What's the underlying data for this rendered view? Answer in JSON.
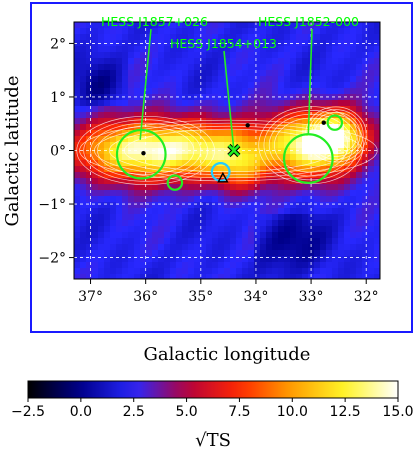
{
  "chart_data": {
    "type": "heatmap",
    "colormap": "gist_heat-like (black → blue → red → orange → yellow → white)",
    "colors": {
      "frame": "#1a1aff",
      "source_circle": "#22ee22",
      "source_label": "#00ff00",
      "small_circle": "#22ccff",
      "contour": "#ffffff",
      "grid": "#ffffff"
    },
    "grid": true,
    "xlabel": "Galactic longitude",
    "ylabel": "Galactic latitude",
    "xlim": [
      37.3,
      31.75
    ],
    "ylim": [
      -2.4,
      2.4
    ],
    "x_ticks": [
      37,
      36,
      35,
      34,
      33,
      32
    ],
    "x_tick_labels": [
      "37°",
      "36°",
      "35°",
      "34°",
      "33°",
      "32°"
    ],
    "y_ticks": [
      2,
      1,
      0,
      -1,
      -2
    ],
    "y_tick_labels": [
      "2°",
      "1°",
      "0°",
      "−1°",
      "−2°"
    ],
    "emission_blobs": [
      {
        "l": 36.0,
        "b": 0.0,
        "amplitude": 15.0,
        "width_l": 1.2,
        "width_b": 0.55
      },
      {
        "l": 34.5,
        "b": 0.05,
        "amplitude": 8.0,
        "width_l": 0.9,
        "width_b": 0.5
      },
      {
        "l": 34.3,
        "b": -0.35,
        "amplitude": 7.0,
        "width_l": 0.5,
        "width_b": 0.4
      },
      {
        "l": 33.0,
        "b": 0.1,
        "amplitude": 13.5,
        "width_l": 0.9,
        "width_b": 0.6
      },
      {
        "l": 32.5,
        "b": 0.3,
        "amplitude": 9.0,
        "width_l": 0.5,
        "width_b": 0.45
      }
    ],
    "green_circles": [
      {
        "l": 36.08,
        "b": -0.07,
        "r": 0.44
      },
      {
        "l": 33.05,
        "b": -0.15,
        "r": 0.44
      },
      {
        "l": 35.47,
        "b": -0.6,
        "r": 0.13
      },
      {
        "l": 32.57,
        "b": 0.52,
        "r": 0.13
      }
    ],
    "cyan_circle": {
      "l": 34.64,
      "b": -0.4,
      "r": 0.16
    },
    "x_marker": {
      "l": 34.4,
      "b": 0.0
    },
    "triangle_marker": {
      "l": 34.6,
      "b": -0.52
    },
    "black_dots": [
      {
        "l": 36.04,
        "b": -0.05
      },
      {
        "l": 34.15,
        "b": 0.47
      },
      {
        "l": 32.77,
        "b": 0.52
      }
    ],
    "annotations": [
      {
        "text": "HESS J1857+026",
        "l": 36.1,
        "b": 0.2
      },
      {
        "text": "HESS J1854+013",
        "l": 34.4,
        "b": 0.0
      },
      {
        "text": "HESS J1852-000",
        "l": 33.05,
        "b": 0.3
      }
    ],
    "colorbar": {
      "label": "√TS",
      "min": -2.5,
      "max": 15.0,
      "ticks": [
        -2.5,
        0.0,
        2.5,
        5.0,
        7.5,
        10.0,
        12.5,
        15.0
      ],
      "tick_labels": [
        "−2.5",
        "0.0",
        "2.5",
        "5.0",
        "7.5",
        "10.0",
        "12.5",
        "15.0"
      ]
    }
  }
}
